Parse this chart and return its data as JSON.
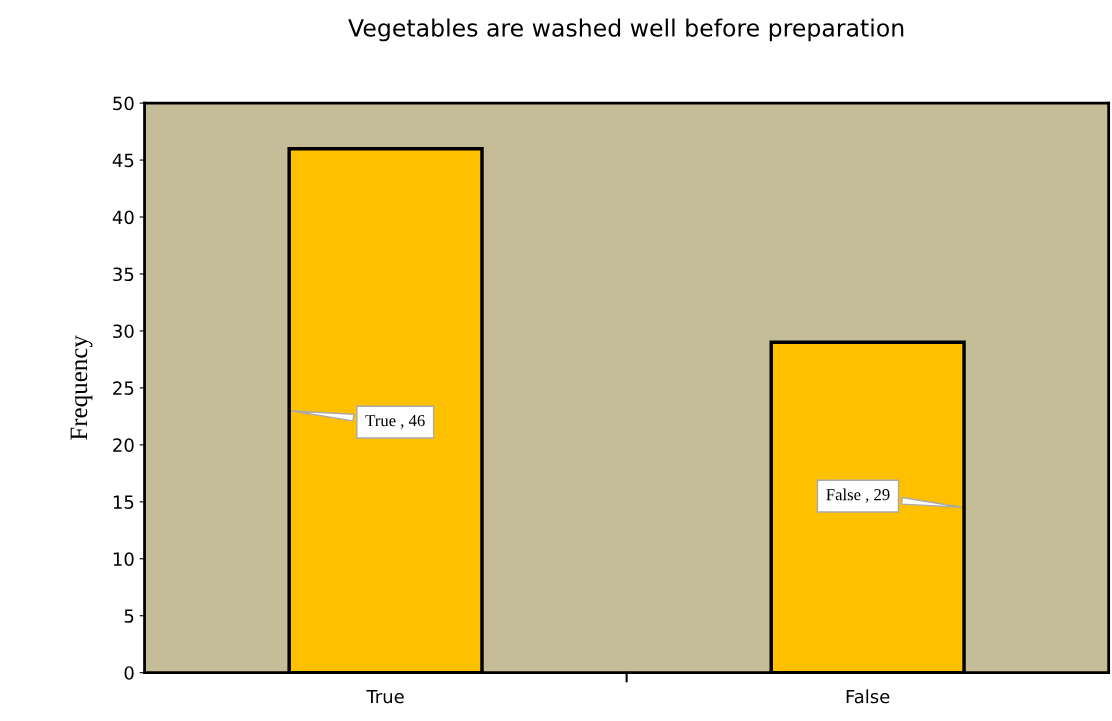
{
  "chart_data": {
    "type": "bar",
    "title": "Vegetables are washed well before preparation",
    "ylabel": "Frequency",
    "categories": [
      "True",
      "False"
    ],
    "values": [
      46,
      29
    ],
    "value_labels": [
      "True , 46",
      "False , 29"
    ],
    "color": "#ffc000",
    "ylim": [
      0,
      50
    ],
    "yticks": [
      0,
      5,
      10,
      15,
      20,
      25,
      30,
      35,
      40,
      45,
      50
    ],
    "grid": false,
    "legend": false
  }
}
